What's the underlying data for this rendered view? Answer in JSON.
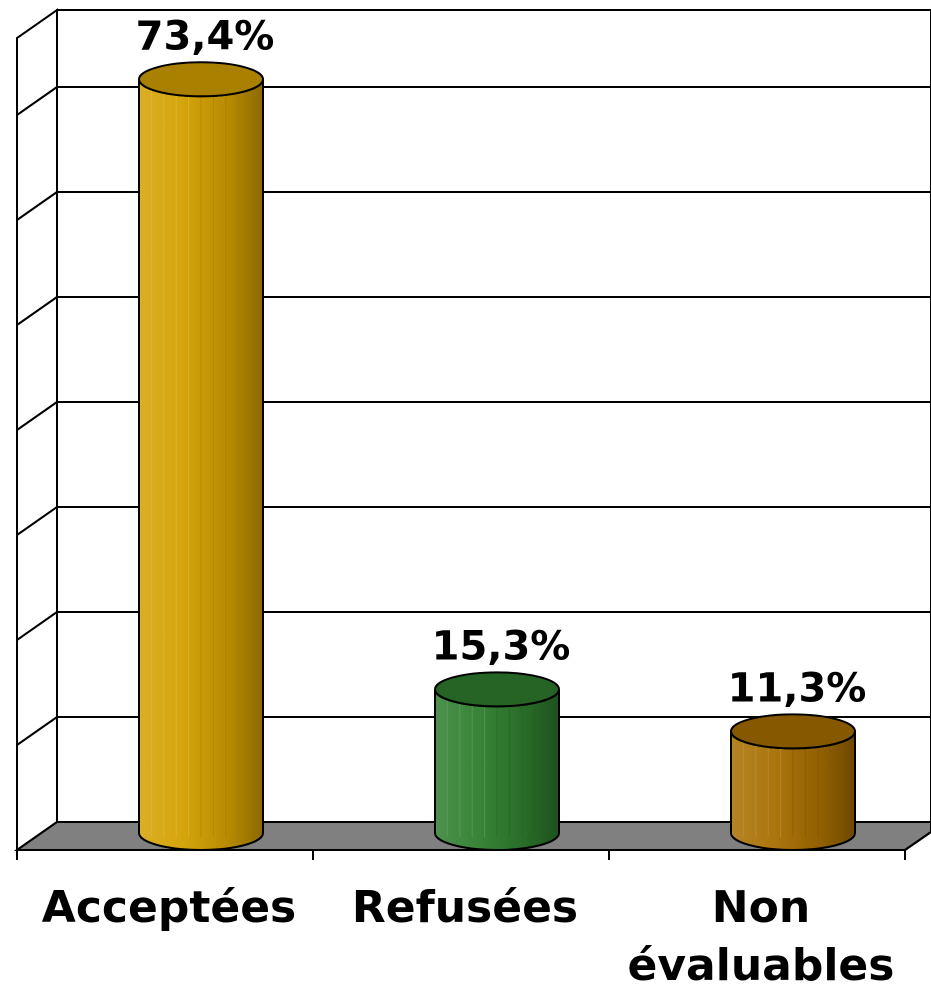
{
  "chart_data": {
    "type": "bar",
    "categories": [
      "Acceptées",
      "Refusées",
      "Non évaluables"
    ],
    "category_lines": [
      [
        "Acceptées"
      ],
      [
        "Refusées"
      ],
      [
        "Non",
        "évaluables"
      ]
    ],
    "values": [
      73.4,
      15.3,
      11.3
    ],
    "data_labels": [
      "73,4%",
      "15,3%",
      "11,3%"
    ],
    "colors": [
      "#d4a000",
      "#2e7d2e",
      "#a86e00"
    ],
    "ylim": [
      0,
      80
    ],
    "grid": true,
    "legend": "none",
    "title": "",
    "xlabel": "",
    "ylabel": ""
  }
}
